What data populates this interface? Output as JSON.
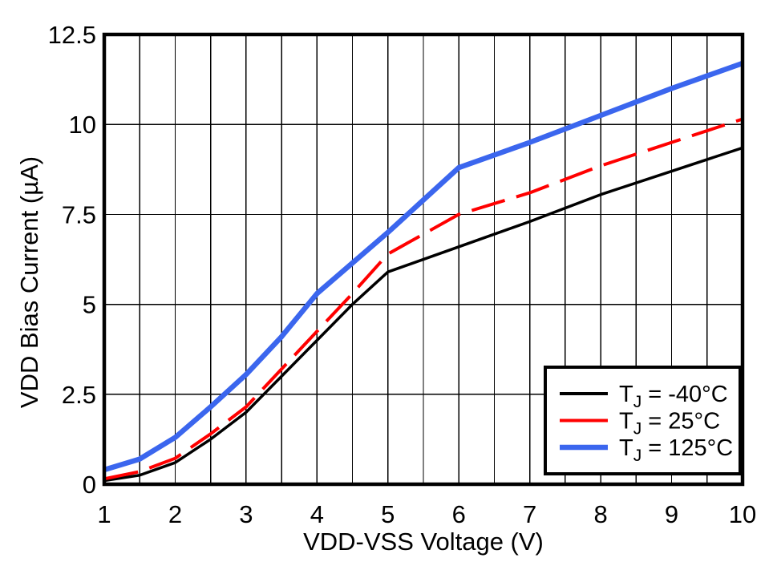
{
  "chart_data": {
    "type": "line",
    "title": "",
    "xlabel": "VDD-VSS Voltage (V)",
    "ylabel": "VDD Bias Current (µA)",
    "xlim": [
      1,
      10
    ],
    "ylim": [
      0,
      12.5
    ],
    "x_ticks": [
      1,
      2,
      3,
      4,
      5,
      6,
      7,
      8,
      9,
      10
    ],
    "x_tick_labels": [
      "1",
      "2",
      "3",
      "4",
      "5",
      "6",
      "7",
      "8",
      "9",
      "10"
    ],
    "y_ticks": [
      0,
      2.5,
      5,
      7.5,
      10,
      12.5
    ],
    "y_tick_labels": [
      "0",
      "2.5",
      "5",
      "7.5",
      "10",
      "12.5"
    ],
    "grid": {
      "x_minor_every": 0.5,
      "y_major_every": 2.5,
      "color": "#000000",
      "on": true
    },
    "frame_color": "#000000",
    "background_color": "#ffffff",
    "legend_position": "bottom-right",
    "series": [
      {
        "name": "TJ = -40°C",
        "legend": {
          "pre": "T",
          "sub": "J",
          "post": " = -40°C"
        },
        "color": "#000000",
        "style": "solid",
        "width": 3.5,
        "points": [
          [
            1,
            0.1
          ],
          [
            1.5,
            0.25
          ],
          [
            2,
            0.6
          ],
          [
            2.5,
            1.25
          ],
          [
            3,
            2.0
          ],
          [
            3.5,
            3.0
          ],
          [
            4,
            4.0
          ],
          [
            4.5,
            5.0
          ],
          [
            5,
            5.9
          ],
          [
            6,
            6.6
          ],
          [
            7,
            7.3
          ],
          [
            8,
            8.05
          ],
          [
            9,
            8.7
          ],
          [
            10,
            9.35
          ]
        ]
      },
      {
        "name": "TJ = 25°C",
        "legend": {
          "pre": "T",
          "sub": "J",
          "post": " = 25°C"
        },
        "color": "#ff0000",
        "style": "dashed",
        "width": 4,
        "points": [
          [
            1,
            0.15
          ],
          [
            1.5,
            0.35
          ],
          [
            2,
            0.72
          ],
          [
            2.5,
            1.4
          ],
          [
            3,
            2.15
          ],
          [
            3.5,
            3.2
          ],
          [
            4,
            4.25
          ],
          [
            4.5,
            5.3
          ],
          [
            5,
            6.4
          ],
          [
            5.5,
            6.95
          ],
          [
            6,
            7.5
          ],
          [
            7,
            8.1
          ],
          [
            8,
            8.85
          ],
          [
            9,
            9.5
          ],
          [
            10,
            10.15
          ]
        ]
      },
      {
        "name": "TJ = 125°C",
        "legend": {
          "pre": "T",
          "sub": "J",
          "post": " = 125°C"
        },
        "color": "#3b66ee",
        "style": "solid",
        "width": 6.5,
        "points": [
          [
            1,
            0.4
          ],
          [
            1.5,
            0.7
          ],
          [
            2,
            1.3
          ],
          [
            2.5,
            2.15
          ],
          [
            3,
            3.05
          ],
          [
            3.5,
            4.1
          ],
          [
            4,
            5.3
          ],
          [
            4.5,
            6.15
          ],
          [
            5,
            7.0
          ],
          [
            5.5,
            7.9
          ],
          [
            6,
            8.8
          ],
          [
            7,
            9.5
          ],
          [
            8,
            10.25
          ],
          [
            9,
            11.0
          ],
          [
            10,
            11.7
          ]
        ]
      }
    ]
  }
}
